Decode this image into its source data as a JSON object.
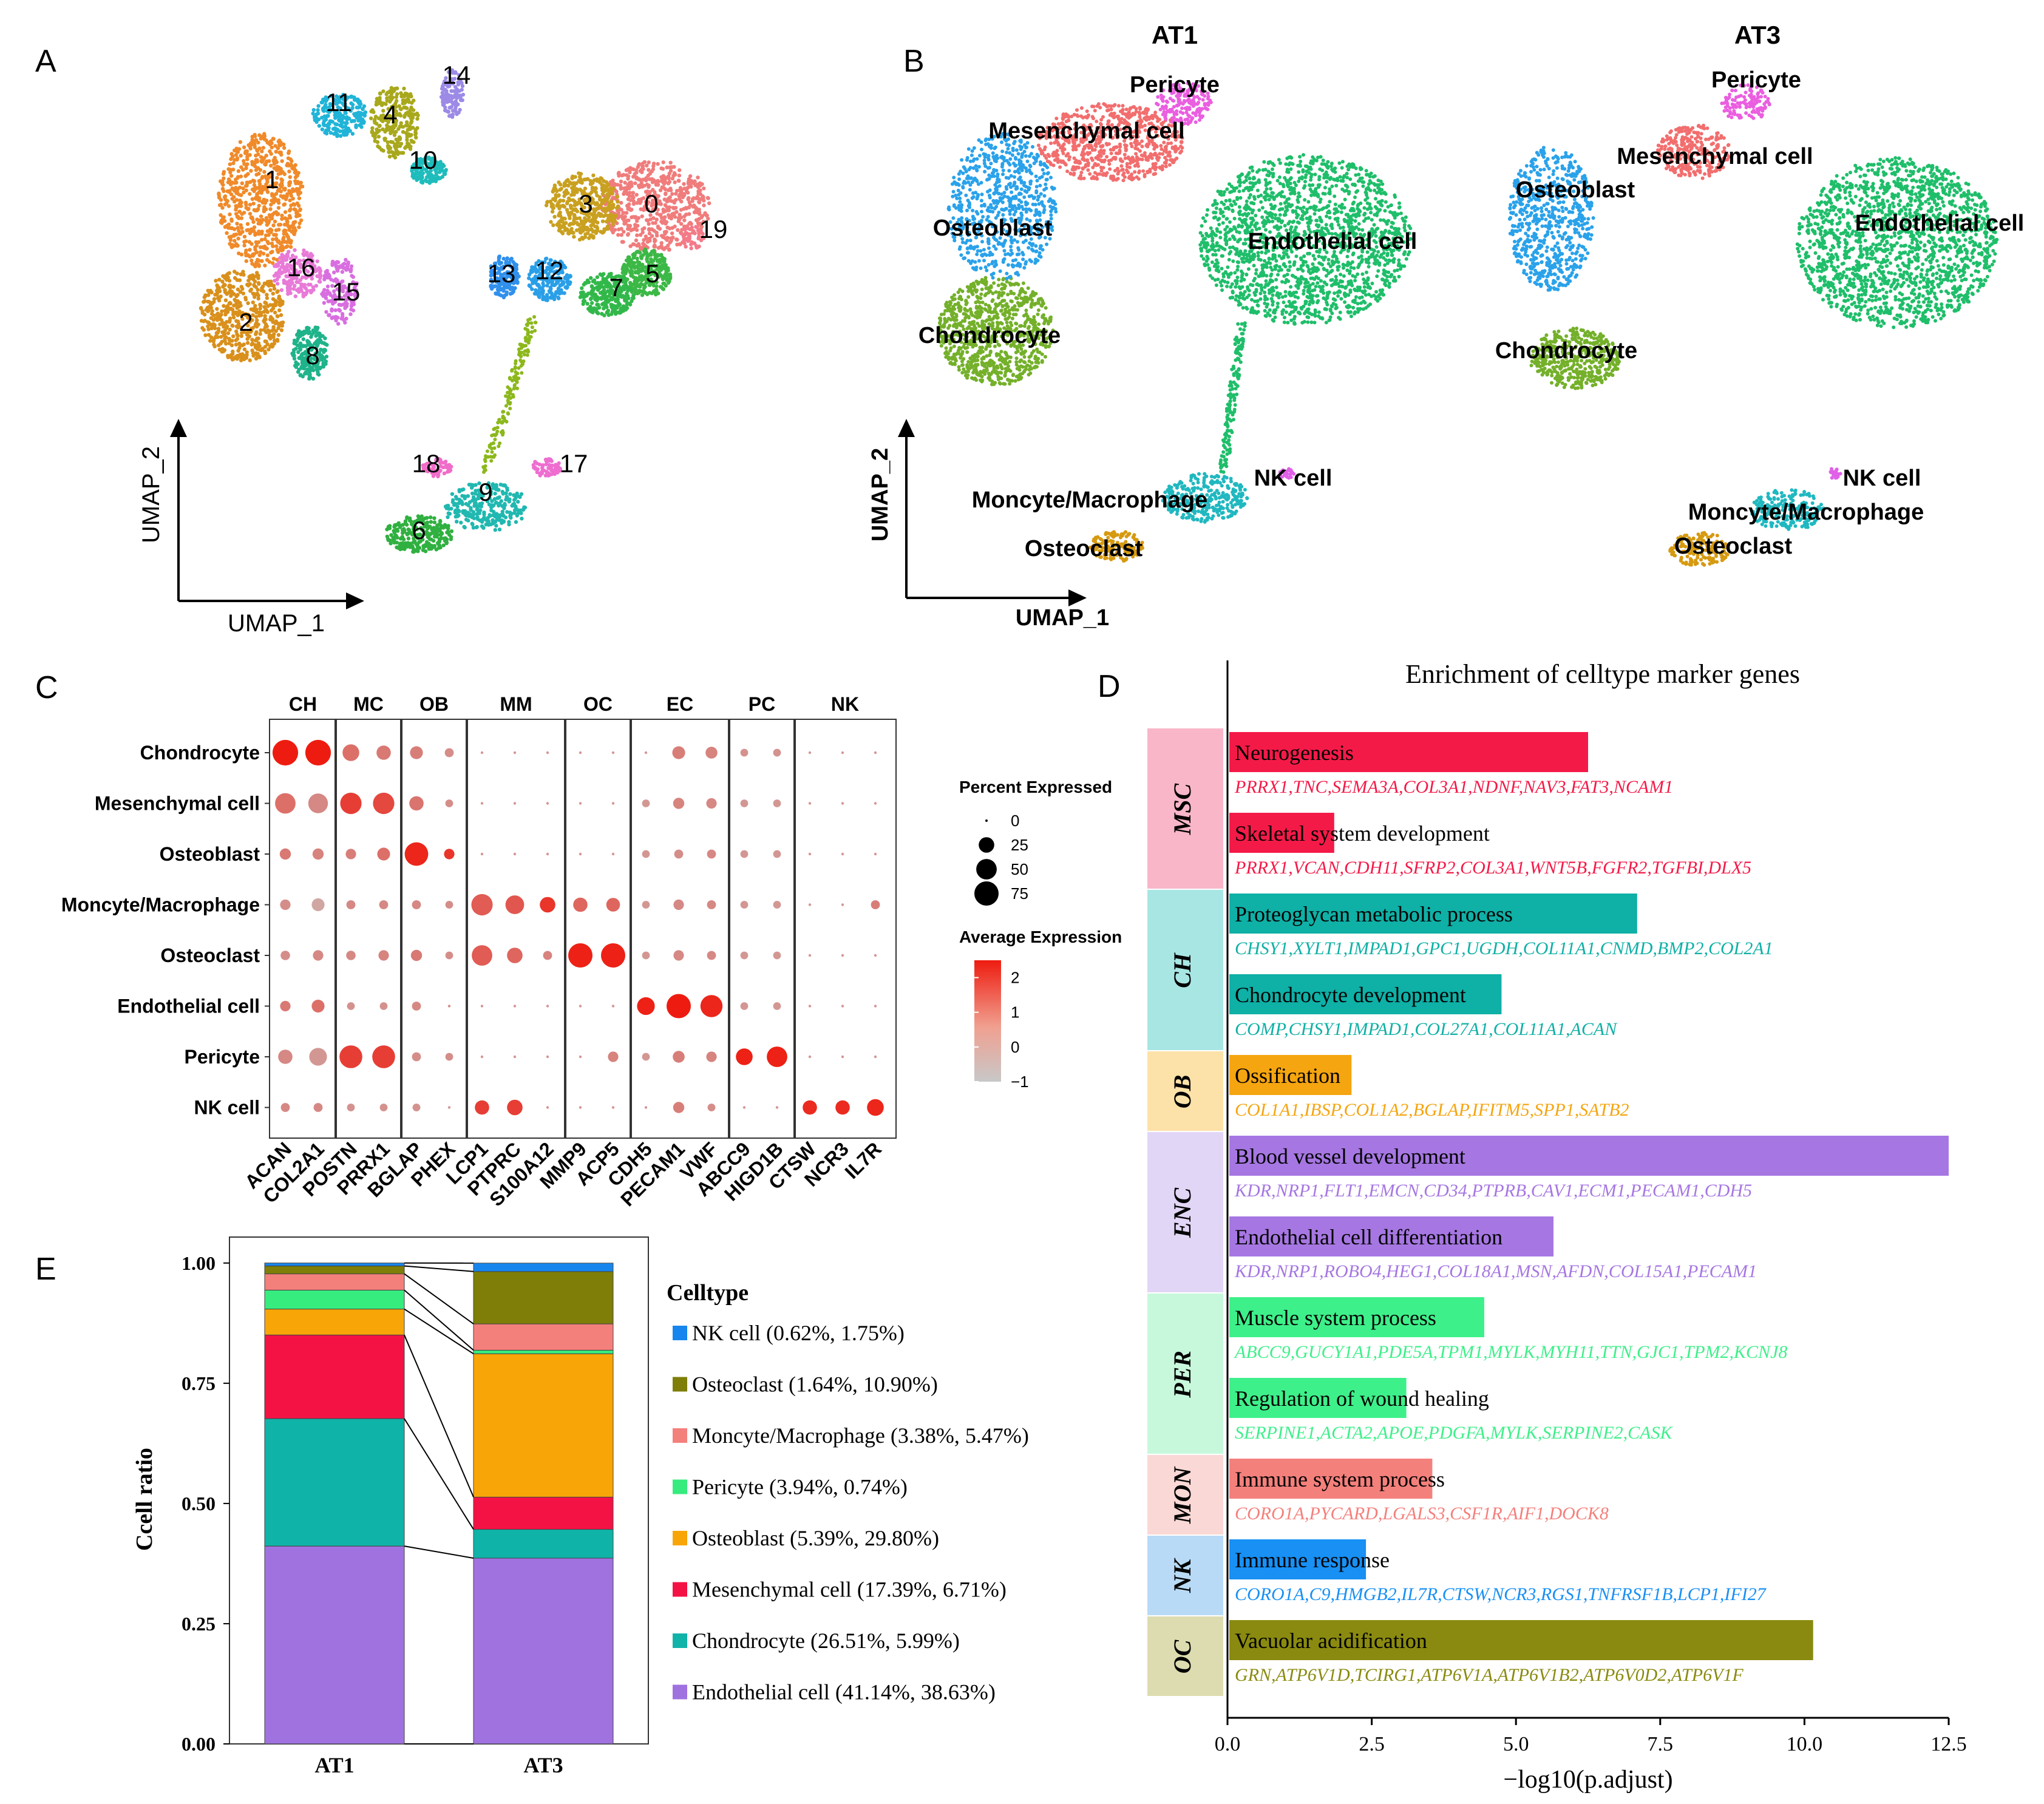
{
  "panel_letters": [
    "A",
    "B",
    "C",
    "D",
    "E"
  ],
  "umap_axes": {
    "x": "UMAP_1",
    "y": "UMAP_2"
  },
  "panel_a": {
    "cluster_labels": [
      "0",
      "1",
      "2",
      "3",
      "4",
      "5",
      "6",
      "7",
      "8",
      "9",
      "10",
      "11",
      "12",
      "13",
      "14",
      "15",
      "16",
      "17",
      "18",
      "19"
    ],
    "colors": {
      "c0": "#f07c7c",
      "c1": "#f08a2a",
      "c2": "#d9901c",
      "c3": "#c9a020",
      "c4": "#a8a81c",
      "c5": "#3cb846",
      "c6": "#30b040",
      "c7": "#32b84a",
      "c8": "#1fb38a",
      "c9": "#20b8b0",
      "c10": "#1fbcbc",
      "c11": "#20b4d8",
      "c12": "#2a9fe8",
      "c13": "#3090ec",
      "c14": "#9c8ae6",
      "c15": "#d86ee0",
      "c16": "#e87ad8",
      "c17": "#ee6ed0",
      "c18": "#f06cc8",
      "c19": "#f47a8a"
    }
  },
  "panel_b": {
    "titles": [
      "AT1",
      "AT3"
    ],
    "at1_labels": [
      "Pericyte",
      "Mesenchymal cell",
      "Osteoblast",
      "Endothelial cell",
      "Chondrocyte",
      "NK cell",
      "Moncyte/Macrophage",
      "Osteoclast"
    ],
    "at3_labels": [
      "Pericyte",
      "Mesenchymal cell",
      "Osteoblast",
      "Endothelial cell",
      "Chondrocyte",
      "NK cell",
      "Moncyte/Macrophage",
      "Osteoclast"
    ],
    "colors": {
      "pericyte": "#ea5ee0",
      "mesenchymal": "#f26e6e",
      "osteoblast": "#2aa2ea",
      "endothelial": "#1fbe6a",
      "chondrocyte": "#74b02a",
      "nk": "#e060e8",
      "macrophage": "#20b8c0",
      "osteoclast": "#d69a10"
    }
  },
  "chart_data": [
    {
      "panel": "C",
      "type": "scatter",
      "subtype": "dotplot",
      "groups": [
        "CH",
        "MC",
        "OB",
        "MM",
        "OC",
        "EC",
        "PC",
        "NK"
      ],
      "group_gene_counts": [
        2,
        2,
        2,
        3,
        2,
        3,
        2,
        3
      ],
      "genes": [
        "ACAN",
        "COL2A1",
        "POSTN",
        "PRRX1",
        "BGLAP",
        "PHEX",
        "LCP1",
        "PTPRC",
        "S100A12",
        "MMP9",
        "ACP5",
        "CDH5",
        "PECAM1",
        "VWF",
        "ABCC9",
        "HIGD1B",
        "CTSW",
        "NCR3",
        "IL7R"
      ],
      "cell_types": [
        "Chondrocyte",
        "Mesenchymal cell",
        "Osteoblast",
        "Moncyte/Macrophage",
        "Osteoclast",
        "Endothelial cell",
        "Pericyte",
        "NK cell"
      ],
      "pct_expressed": [
        [
          85,
          85,
          30,
          20,
          15,
          5,
          2,
          2,
          2,
          2,
          2,
          2,
          15,
          12,
          3,
          3,
          2,
          2,
          2
        ],
        [
          50,
          45,
          55,
          55,
          20,
          3,
          2,
          2,
          2,
          2,
          2,
          3,
          10,
          8,
          3,
          3,
          2,
          2,
          2
        ],
        [
          10,
          10,
          8,
          15,
          70,
          8,
          2,
          2,
          2,
          2,
          2,
          3,
          5,
          5,
          3,
          3,
          2,
          2,
          2
        ],
        [
          8,
          15,
          5,
          5,
          5,
          3,
          55,
          40,
          25,
          20,
          18,
          3,
          8,
          5,
          3,
          3,
          2,
          2,
          5
        ],
        [
          6,
          8,
          6,
          8,
          10,
          3,
          50,
          25,
          5,
          75,
          75,
          3,
          8,
          5,
          3,
          3,
          2,
          2,
          2
        ],
        [
          8,
          15,
          3,
          3,
          5,
          2,
          2,
          2,
          2,
          2,
          2,
          35,
          75,
          60,
          3,
          3,
          2,
          2,
          2
        ],
        [
          20,
          35,
          65,
          65,
          5,
          3,
          2,
          2,
          2,
          2,
          8,
          3,
          12,
          8,
          30,
          50,
          2,
          2,
          2
        ],
        [
          5,
          5,
          3,
          3,
          3,
          2,
          20,
          25,
          2,
          2,
          2,
          2,
          10,
          3,
          2,
          2,
          20,
          20,
          30
        ]
      ],
      "avg_expression": [
        [
          2.5,
          2.5,
          0.8,
          0.6,
          0.5,
          0.2,
          0,
          0,
          0,
          0,
          0,
          0,
          0.5,
          0.4,
          0.1,
          0.1,
          0,
          0,
          0
        ],
        [
          0.8,
          0.3,
          1.8,
          1.6,
          0.7,
          0.2,
          0,
          0,
          0,
          0,
          0,
          0,
          0.4,
          0.3,
          0,
          0,
          0,
          0,
          0
        ],
        [
          0.6,
          0.4,
          0.5,
          0.8,
          2.3,
          2.0,
          0,
          0,
          0,
          0,
          0,
          0,
          0.2,
          0.3,
          0,
          0,
          0,
          0,
          0
        ],
        [
          0.2,
          -0.3,
          0.3,
          0.3,
          0.3,
          0.2,
          1.2,
          1.3,
          2.0,
          1.0,
          1.0,
          0,
          0.3,
          0.3,
          0,
          0,
          0,
          0,
          0.5
        ],
        [
          0.2,
          0.3,
          0.3,
          0.4,
          0.6,
          0.2,
          1.2,
          1.0,
          0.4,
          2.4,
          2.4,
          0,
          0.3,
          0.3,
          0,
          0,
          0,
          0,
          0
        ],
        [
          0.6,
          0.8,
          0.1,
          0.1,
          0.3,
          0.2,
          0,
          0,
          0,
          0,
          0,
          2.4,
          2.5,
          2.3,
          0,
          0,
          0,
          0,
          0
        ],
        [
          0.3,
          0,
          1.8,
          1.8,
          0.2,
          0.2,
          0,
          0,
          0,
          0,
          0.4,
          0,
          0.5,
          0.4,
          2.4,
          2.4,
          0,
          0,
          0
        ],
        [
          0.3,
          0.3,
          0.1,
          0.1,
          0.1,
          0,
          1.8,
          1.8,
          0,
          0,
          0,
          0,
          0.5,
          0.2,
          0,
          0,
          2.2,
          2.2,
          2.3
        ]
      ],
      "legend_size_title": "Percent Expressed",
      "legend_size_values": [
        0,
        25,
        50,
        75
      ],
      "legend_color_title": "Average Expression",
      "legend_color_ticks": [
        2,
        1,
        0,
        -1
      ],
      "color_range": [
        -1,
        2.5
      ],
      "color_low": "#c8c8c8",
      "color_high": "#ee1c10"
    },
    {
      "panel": "D",
      "type": "bar",
      "orientation": "horizontal",
      "title": "Enrichment of celltype marker genes",
      "xlabel": "−log10(p.adjust)",
      "xlim": [
        0,
        12.5
      ],
      "xticks": [
        "0.0",
        "2.5",
        "5.0",
        "7.5",
        "10.0",
        "12.5"
      ],
      "groups": [
        {
          "label": "MSC",
          "color": "#f41a48",
          "bg": "#f8b6c8",
          "terms": [
            {
              "name": "Neurogenesis",
              "value": 6.25,
              "genes": "PRRX1,TNC,SEMA3A,COL3A1,NDNF,NAV3,FAT3,NCAM1"
            },
            {
              "name": "Skeletal system development",
              "value": 1.85,
              "genes": "PRRX1,VCAN,CDH11,SFRP2,COL3A1,WNT5B,FGFR2,TGFBI,DLX5"
            }
          ]
        },
        {
          "label": "CH",
          "color": "#0fb0a6",
          "bg": "#a8e6e4",
          "terms": [
            {
              "name": "Proteoglycan metabolic process",
              "value": 7.1,
              "genes": "CHSY1,XYLT1,IMPAD1,GPC1,UGDH,COL11A1,CNMD,BMP2,COL2A1"
            },
            {
              "name": "Chondrocyte development",
              "value": 4.75,
              "genes": "COMP,CHSY1,IMPAD1,COL27A1,COL11A1,ACAN"
            }
          ]
        },
        {
          "label": "OB",
          "color": "#f5a510",
          "bg": "#fce2a8",
          "terms": [
            {
              "name": "Ossification",
              "value": 2.15,
              "genes": "COL1A1,IBSP,COL1A2,BGLAP,IFITM5,SPP1,SATB2"
            }
          ]
        },
        {
          "label": "ENC",
          "color": "#a677e2",
          "bg": "#e2d6f6",
          "terms": [
            {
              "name": "Blood vessel development",
              "value": 12.5,
              "genes": "KDR,NRP1,FLT1,EMCN,CD34,PTPRB,CAV1,ECM1,PECAM1,CDH5"
            },
            {
              "name": "Endothelial cell differentiation",
              "value": 5.65,
              "genes": "KDR,NRP1,ROBO4,HEG1,COL18A1,MSN,AFDN,COL15A1,PECAM1"
            }
          ]
        },
        {
          "label": "PER",
          "color": "#3ef08a",
          "bg": "#c8f8dc",
          "terms": [
            {
              "name": "Muscle system process",
              "value": 4.45,
              "genes": "ABCC9,GUCY1A1,PDE5A,TPM1,MYLK,MYH11,TTN,GJC1,TPM2,KCNJ8"
            },
            {
              "name": "Regulation of wound healing",
              "value": 3.1,
              "genes": "SERPINE1,ACTA2,APOE,PDGFA,MYLK,SERPINE2,CASK"
            }
          ]
        },
        {
          "label": "MON",
          "color": "#f4807c",
          "bg": "#fad8d6",
          "terms": [
            {
              "name": "Immune system process",
              "value": 3.55,
              "genes": "CORO1A,PYCARD,LGALS3,CSF1R,AIF1,DOCK8"
            }
          ]
        },
        {
          "label": "NK",
          "color": "#1890f4",
          "bg": "#b8daf6",
          "terms": [
            {
              "name": "Immune response",
              "value": 2.4,
              "genes": "CORO1A,C9,HMGB2,IL7R,CTSW,NCR3,RGS1,TNFRSF1B,LCP1,IFI27"
            }
          ]
        },
        {
          "label": "OC",
          "color": "#8a8a10",
          "bg": "#dcdcb0",
          "terms": [
            {
              "name": "Vacuolar acidification",
              "value": 10.15,
              "genes": "GRN,ATP6V1D,TCIRG1,ATP6V1A,ATP6V1B2,ATP6V0D2,ATP6V1F"
            }
          ]
        }
      ]
    },
    {
      "panel": "E",
      "type": "bar",
      "stacked": true,
      "categories": [
        "AT1",
        "AT3"
      ],
      "ylabel": "Ccell ratio",
      "ylim": [
        0,
        1
      ],
      "yticks": [
        "0.00",
        "0.25",
        "0.50",
        "0.75",
        "1.00"
      ],
      "legend_title": "Celltype",
      "series": [
        {
          "name": "Endothelial cell",
          "values": [
            0.4114,
            0.3863
          ],
          "color": "#a072e0",
          "legend": "Endothelial cell (41.14%, 38.63%)"
        },
        {
          "name": "Chondrocyte",
          "values": [
            0.2651,
            0.0599
          ],
          "color": "#10b3a8",
          "legend": "Chondrocyte (26.51%, 5.99%)"
        },
        {
          "name": "Mesenchymal cell",
          "values": [
            0.1739,
            0.0671
          ],
          "color": "#f41244",
          "legend": "Mesenchymal cell (17.39%, 6.71%)"
        },
        {
          "name": "Osteoblast",
          "values": [
            0.0539,
            0.298
          ],
          "color": "#f8a508",
          "legend": "Osteoblast (5.39%, 29.80%)"
        },
        {
          "name": "Pericyte",
          "values": [
            0.0394,
            0.0074
          ],
          "color": "#36ec7e",
          "legend": "Pericyte (3.94%, 0.74%)"
        },
        {
          "name": "Moncyte/Macrophage",
          "values": [
            0.0338,
            0.0547
          ],
          "color": "#f4807c",
          "legend": "Moncyte/Macrophage (3.38%, 5.47%)"
        },
        {
          "name": "Osteoclast",
          "values": [
            0.0164,
            0.109
          ],
          "color": "#7e7e08",
          "legend": "Osteoclast (1.64%, 10.90%)"
        },
        {
          "name": "NK cell",
          "values": [
            0.0062,
            0.0175
          ],
          "color": "#1686ee",
          "legend": "NK cell (0.62%, 1.75%)"
        }
      ]
    }
  ]
}
